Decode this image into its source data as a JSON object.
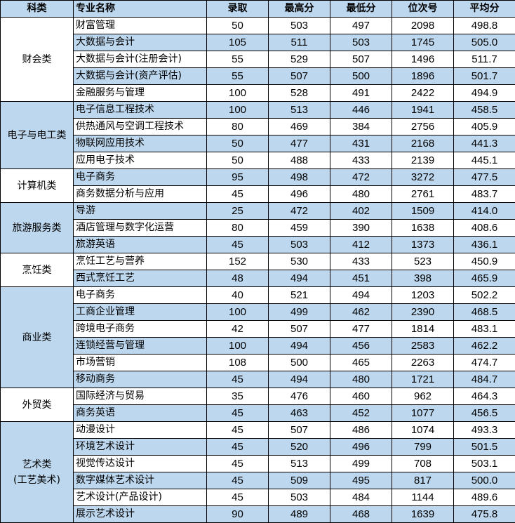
{
  "colors": {
    "header_bg": "#bdd7ee",
    "alt_row_bg": "#bdd7ee",
    "border": "#000000"
  },
  "headers": [
    "科类",
    "专业名称",
    "录取",
    "最高分",
    "最低分",
    "位次号",
    "平均分"
  ],
  "groups": [
    {
      "category": "财会类",
      "rows": [
        [
          "财富管理",
          "50",
          "503",
          "497",
          "2098",
          "498.8"
        ],
        [
          "大数据与会计",
          "105",
          "511",
          "503",
          "1745",
          "505.0"
        ],
        [
          "大数据与会计(注册会计)",
          "55",
          "529",
          "507",
          "1496",
          "511.7"
        ],
        [
          "大数据与会计(资产评估)",
          "55",
          "507",
          "500",
          "1896",
          "501.7"
        ],
        [
          "金融服务与管理",
          "100",
          "528",
          "491",
          "2422",
          "494.9"
        ]
      ]
    },
    {
      "category": "电子与电工类",
      "rows": [
        [
          "电子信息工程技术",
          "100",
          "513",
          "446",
          "1941",
          "458.5"
        ],
        [
          "供热通风与空调工程技术",
          "80",
          "469",
          "384",
          "2756",
          "405.9"
        ],
        [
          "物联网应用技术",
          "50",
          "477",
          "431",
          "2168",
          "441.3"
        ],
        [
          "应用电子技术",
          "50",
          "488",
          "433",
          "2139",
          "445.1"
        ]
      ]
    },
    {
      "category": "计算机类",
      "rows": [
        [
          "电子商务",
          "95",
          "498",
          "472",
          "3272",
          "477.5"
        ],
        [
          "商务数据分析与应用",
          "45",
          "496",
          "480",
          "2761",
          "483.7"
        ]
      ]
    },
    {
      "category": "旅游服务类",
      "rows": [
        [
          "导游",
          "25",
          "472",
          "402",
          "1509",
          "414.0"
        ],
        [
          "酒店管理与数字化运营",
          "80",
          "459",
          "390",
          "1638",
          "408.6"
        ],
        [
          "旅游英语",
          "45",
          "503",
          "412",
          "1373",
          "436.1"
        ]
      ]
    },
    {
      "category": "烹饪类",
      "rows": [
        [
          "烹饪工艺与营养",
          "152",
          "530",
          "433",
          "523",
          "450.9"
        ],
        [
          "西式烹饪工艺",
          "48",
          "494",
          "451",
          "398",
          "465.9"
        ]
      ]
    },
    {
      "category": "商业类",
      "rows": [
        [
          "电子商务",
          "40",
          "521",
          "494",
          "1203",
          "502.2"
        ],
        [
          "工商企业管理",
          "100",
          "499",
          "462",
          "2390",
          "468.5"
        ],
        [
          "跨境电子商务",
          "42",
          "507",
          "477",
          "1814",
          "483.1"
        ],
        [
          "连锁经营与管理",
          "100",
          "494",
          "456",
          "2583",
          "462.2"
        ],
        [
          "市场营销",
          "108",
          "500",
          "465",
          "2263",
          "474.7"
        ],
        [
          "移动商务",
          "45",
          "494",
          "480",
          "1721",
          "484.7"
        ]
      ]
    },
    {
      "category": "外贸类",
      "rows": [
        [
          "国际经济与贸易",
          "35",
          "476",
          "460",
          "962",
          "464.3"
        ],
        [
          "商务英语",
          "45",
          "463",
          "452",
          "1077",
          "456.5"
        ]
      ]
    },
    {
      "category": "艺术类\n(工艺美术)",
      "rows": [
        [
          "动漫设计",
          "45",
          "507",
          "486",
          "1074",
          "493.3"
        ],
        [
          "环境艺术设计",
          "45",
          "520",
          "496",
          "799",
          "501.5"
        ],
        [
          "视觉传达设计",
          "45",
          "513",
          "499",
          "708",
          "503.1"
        ],
        [
          "数字媒体艺术设计",
          "45",
          "509",
          "495",
          "817",
          "500.0"
        ],
        [
          "艺术设计(产品设计)",
          "45",
          "503",
          "484",
          "1144",
          "489.6"
        ],
        [
          "展示艺术设计",
          "90",
          "489",
          "468",
          "1639",
          "475.8"
        ]
      ]
    }
  ]
}
